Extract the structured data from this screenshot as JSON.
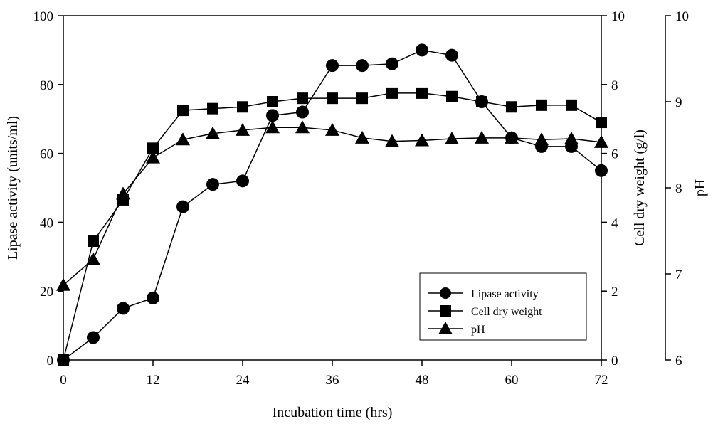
{
  "chart_data": {
    "type": "line",
    "title": "",
    "xlabel": "Incubation time (hrs)",
    "xlim": [
      0,
      72
    ],
    "xticks": [
      0,
      12,
      24,
      36,
      48,
      60,
      72
    ],
    "x": [
      0,
      4,
      8,
      12,
      16,
      20,
      24,
      28,
      32,
      36,
      40,
      44,
      48,
      52,
      56,
      60,
      64,
      68,
      72
    ],
    "axes": {
      "left": {
        "label": "Lipase activity (units/ml)",
        "range": [
          0,
          100
        ],
        "ticks": [
          0,
          20,
          40,
          60,
          80,
          100
        ]
      },
      "right1": {
        "label": "Cell dry weight (g/l)",
        "range": [
          0,
          10
        ],
        "ticks": [
          0,
          2,
          4,
          6,
          8,
          10
        ]
      },
      "right2": {
        "label": "pH",
        "range": [
          6,
          10
        ],
        "ticks": [
          6,
          7,
          8,
          9,
          10
        ]
      }
    },
    "series": [
      {
        "name": "Lipase activity",
        "marker": "circle",
        "axis": "left",
        "values": [
          0,
          6.5,
          15,
          18,
          44.5,
          51,
          52,
          71,
          72,
          85.5,
          85.5,
          86,
          90,
          88.5,
          75,
          64.5,
          62,
          62,
          55
        ]
      },
      {
        "name": "Cell dry weight",
        "marker": "square",
        "axis": "right1",
        "values": [
          0,
          3.45,
          4.65,
          6.15,
          7.25,
          7.3,
          7.35,
          7.5,
          7.6,
          7.6,
          7.6,
          7.75,
          7.75,
          7.65,
          7.5,
          7.35,
          7.4,
          7.4,
          6.9
        ]
      },
      {
        "name": "pH",
        "marker": "triangle",
        "axis": "right2",
        "values": [
          6.87,
          7.17,
          7.93,
          8.35,
          8.56,
          8.63,
          8.67,
          8.7,
          8.7,
          8.67,
          8.58,
          8.54,
          8.55,
          8.57,
          8.58,
          8.58,
          8.56,
          8.57,
          8.53
        ]
      }
    ],
    "legend": {
      "placement": "bottom-right inside plot"
    },
    "grid": false
  }
}
